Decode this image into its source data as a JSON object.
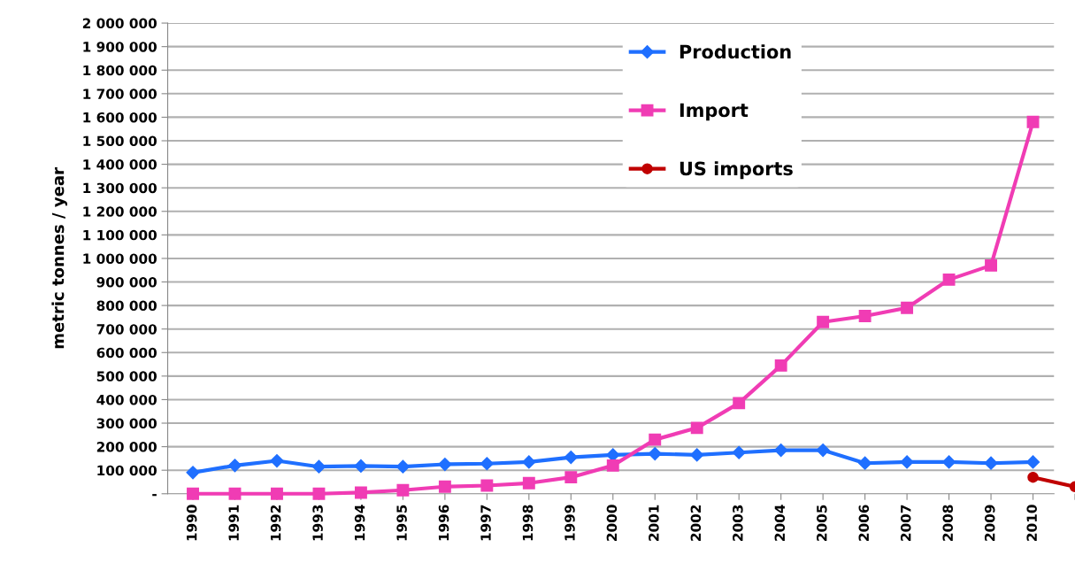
{
  "chart_data": {
    "type": "line",
    "ylabel": "metric tonnes / year",
    "categories": [
      "1990",
      "1991",
      "1992",
      "1993",
      "1994",
      "1995",
      "1996",
      "1997",
      "1998",
      "1999",
      "2000",
      "2001",
      "2002",
      "2003",
      "2004",
      "2005",
      "2006",
      "2007",
      "2008",
      "2009",
      "2010",
      null
    ],
    "series": [
      {
        "name": "Production",
        "color": "#1f6fff",
        "marker": "diamond",
        "values": [
          90000,
          120000,
          140000,
          115000,
          118000,
          115000,
          125000,
          128000,
          135000,
          155000,
          165000,
          170000,
          165000,
          175000,
          185000,
          185000,
          130000,
          135000,
          135000,
          130000,
          135000,
          null
        ]
      },
      {
        "name": "Import",
        "color": "#f03cb4",
        "marker": "square",
        "values": [
          0,
          0,
          0,
          0,
          5000,
          15000,
          30000,
          35000,
          45000,
          70000,
          120000,
          230000,
          280000,
          385000,
          545000,
          730000,
          755000,
          790000,
          910000,
          970000,
          1580000,
          null
        ]
      },
      {
        "name": "US imports",
        "color": "#c00000",
        "marker": "circle",
        "values": [
          null,
          null,
          null,
          null,
          null,
          null,
          null,
          null,
          null,
          null,
          null,
          null,
          null,
          null,
          null,
          null,
          null,
          null,
          null,
          null,
          70000,
          30000
        ]
      }
    ],
    "ylim": [
      0,
      2000000
    ],
    "yticks": [
      {
        "value": 0,
        "label": "-"
      },
      {
        "value": 100000,
        "label": "100 000"
      },
      {
        "value": 200000,
        "label": "200 000"
      },
      {
        "value": 300000,
        "label": "300 000"
      },
      {
        "value": 400000,
        "label": "400 000"
      },
      {
        "value": 500000,
        "label": "500 000"
      },
      {
        "value": 600000,
        "label": "600 000"
      },
      {
        "value": 700000,
        "label": "700 000"
      },
      {
        "value": 800000,
        "label": "800 000"
      },
      {
        "value": 900000,
        "label": "900 000"
      },
      {
        "value": 1000000,
        "label": "1 000 000"
      },
      {
        "value": 1100000,
        "label": "1 100 000"
      },
      {
        "value": 1200000,
        "label": "1 200 000"
      },
      {
        "value": 1300000,
        "label": "1 300 000"
      },
      {
        "value": 1400000,
        "label": "1 400 000"
      },
      {
        "value": 1500000,
        "label": "1 500 000"
      },
      {
        "value": 1600000,
        "label": "1 600 000"
      },
      {
        "value": 1700000,
        "label": "1 700 000"
      },
      {
        "value": 1800000,
        "label": "1 800 000"
      },
      {
        "value": 1900000,
        "label": "1 900 000"
      },
      {
        "value": 2000000,
        "label": "2 000 000"
      }
    ],
    "grid": "y",
    "legend": "top",
    "line_style": "solid"
  }
}
